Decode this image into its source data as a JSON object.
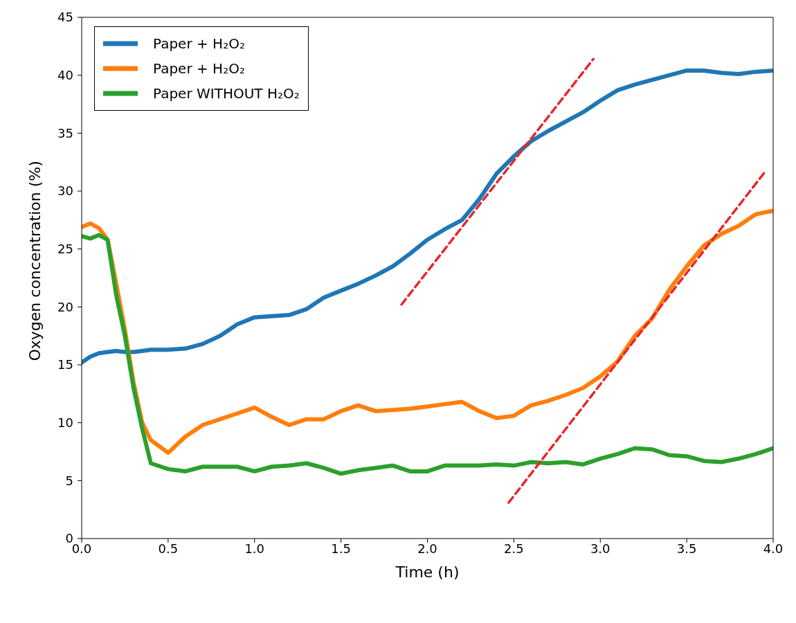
{
  "chart_data": {
    "type": "line",
    "xlabel": "Time (h)",
    "ylabel": "Oxygen concentration (%)",
    "xlim": [
      0,
      4
    ],
    "xticks": [
      {
        "value": 0,
        "label": "0.0"
      },
      {
        "value": 0.5,
        "label": "0.5"
      },
      {
        "value": 1,
        "label": "1.0"
      },
      {
        "value": 1.5,
        "label": "1.5"
      },
      {
        "value": 2,
        "label": "2.0"
      },
      {
        "value": 2.5,
        "label": "2.5"
      },
      {
        "value": 3,
        "label": "3.0"
      },
      {
        "value": 3.5,
        "label": "3.5"
      },
      {
        "value": 4,
        "label": "4.0"
      }
    ],
    "ylim": [
      0,
      45
    ],
    "yticks": [
      0,
      5,
      10,
      15,
      20,
      25,
      30,
      35,
      40,
      45
    ],
    "grid": false,
    "legend": "top left",
    "marker": "none",
    "line_style": "solid",
    "x": [
      0,
      0.05,
      0.1,
      0.15,
      0.2,
      0.25,
      0.3,
      0.35,
      0.4,
      0.5,
      0.6,
      0.7,
      0.8,
      0.9,
      1.0,
      1.1,
      1.2,
      1.3,
      1.4,
      1.5,
      1.6,
      1.7,
      1.8,
      1.9,
      2.0,
      2.1,
      2.2,
      2.3,
      2.4,
      2.5,
      2.6,
      2.7,
      2.8,
      2.9,
      3.0,
      3.1,
      3.2,
      3.3,
      3.4,
      3.5,
      3.6,
      3.7,
      3.8,
      3.9,
      4.0
    ],
    "series": [
      {
        "name": "Paper + H₂O₂",
        "color": "#1f77b4",
        "values": [
          15.2,
          15.7,
          16.0,
          16.1,
          16.2,
          16.1,
          16.1,
          16.2,
          16.3,
          16.3,
          16.4,
          16.8,
          17.5,
          18.5,
          19.1,
          19.2,
          19.3,
          19.8,
          20.8,
          21.4,
          22.0,
          22.7,
          23.5,
          24.6,
          25.8,
          26.7,
          27.5,
          29.3,
          31.5,
          33.0,
          34.3,
          35.2,
          36.0,
          36.8,
          37.8,
          38.7,
          39.2,
          39.6,
          40.0,
          40.4,
          40.4,
          40.2,
          40.1,
          40.3,
          40.4
        ]
      },
      {
        "name": "Paper + H₂O₂",
        "color": "#ff7f0e",
        "values": [
          26.9,
          27.2,
          26.8,
          25.8,
          22.0,
          18.0,
          13.5,
          10.0,
          8.5,
          7.4,
          8.8,
          9.8,
          10.3,
          10.8,
          11.3,
          10.5,
          9.8,
          10.3,
          10.3,
          11.0,
          11.5,
          11.0,
          11.1,
          11.2,
          11.4,
          11.6,
          11.8,
          11.0,
          10.4,
          10.6,
          11.5,
          11.9,
          12.4,
          13.0,
          14.0,
          15.3,
          17.5,
          19.0,
          21.5,
          23.5,
          25.3,
          26.3,
          27.0,
          28.0,
          28.3
        ]
      },
      {
        "name": "Paper WITHOUT H₂O₂",
        "color": "#2ca02c",
        "values": [
          26.1,
          25.9,
          26.2,
          25.8,
          21.0,
          17.5,
          13.0,
          9.5,
          6.5,
          6.0,
          5.8,
          6.2,
          6.2,
          6.2,
          5.8,
          6.2,
          6.3,
          6.5,
          6.1,
          5.6,
          5.9,
          6.1,
          6.3,
          5.8,
          5.8,
          6.3,
          6.3,
          6.3,
          6.4,
          6.3,
          6.6,
          6.5,
          6.6,
          6.4,
          6.9,
          7.3,
          7.8,
          7.7,
          7.2,
          7.1,
          6.7,
          6.6,
          6.9,
          7.3,
          7.8
        ]
      },
      {
        "type": "line",
        "line_style": "dashed",
        "color": "#e8262a",
        "x": [
          1.85,
          2.96
        ],
        "values": [
          20.2,
          41.4
        ]
      },
      {
        "type": "line",
        "line_style": "dashed",
        "color": "#e8262a",
        "x": [
          2.47,
          3.96
        ],
        "values": [
          3.1,
          31.8
        ]
      }
    ]
  }
}
